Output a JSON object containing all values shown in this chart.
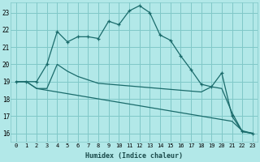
{
  "xlabel": "Humidex (Indice chaleur)",
  "bg_color": "#b2e8e8",
  "grid_color": "#80c8c8",
  "line_color": "#1a6b6b",
  "x_ticks": [
    0,
    1,
    2,
    3,
    4,
    5,
    6,
    7,
    8,
    9,
    10,
    11,
    12,
    13,
    14,
    15,
    16,
    17,
    18,
    19,
    20,
    21,
    22,
    23
  ],
  "ylim": [
    15.5,
    23.6
  ],
  "xlim": [
    -0.5,
    23.5
  ],
  "yticks": [
    16,
    17,
    18,
    19,
    20,
    21,
    22,
    23
  ],
  "curve1_x": [
    0,
    1,
    2,
    3,
    4,
    5,
    6,
    7,
    8,
    9,
    10,
    11,
    12,
    13,
    14,
    15,
    16,
    17,
    18,
    19,
    20,
    21,
    22,
    23
  ],
  "curve1_y": [
    19.0,
    19.0,
    19.0,
    20.0,
    21.9,
    21.3,
    21.6,
    21.6,
    21.5,
    22.5,
    22.3,
    23.1,
    23.4,
    23.0,
    21.7,
    21.4,
    20.5,
    19.7,
    18.85,
    18.7,
    19.5,
    17.0,
    16.1,
    16.0
  ],
  "curve2_x": [
    0,
    1,
    2,
    3,
    4,
    5,
    6,
    7,
    8,
    9,
    10,
    11,
    12,
    13,
    14,
    15,
    16,
    17,
    18,
    19,
    20,
    21,
    22,
    23
  ],
  "curve2_y": [
    19.0,
    19.0,
    18.6,
    18.6,
    20.0,
    19.6,
    19.3,
    19.1,
    18.9,
    18.85,
    18.8,
    18.75,
    18.7,
    18.65,
    18.6,
    18.55,
    18.5,
    18.45,
    18.4,
    18.7,
    18.6,
    17.2,
    16.1,
    16.0
  ],
  "curve3_x": [
    0,
    1,
    2,
    3,
    4,
    5,
    6,
    7,
    8,
    9,
    10,
    11,
    12,
    13,
    14,
    15,
    16,
    17,
    18,
    19,
    20,
    21,
    22,
    23
  ],
  "curve3_y": [
    19.0,
    19.0,
    18.6,
    18.5,
    18.4,
    18.3,
    18.2,
    18.1,
    18.0,
    17.9,
    17.8,
    17.7,
    17.6,
    17.5,
    17.4,
    17.3,
    17.2,
    17.1,
    17.0,
    16.9,
    16.8,
    16.7,
    16.15,
    16.0
  ]
}
